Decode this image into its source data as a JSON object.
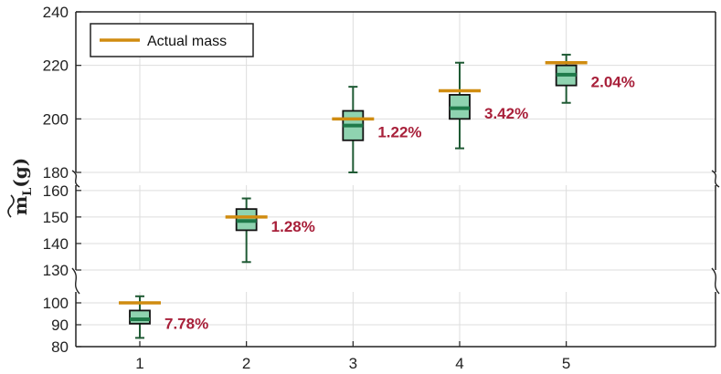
{
  "chart_data": {
    "type": "box",
    "title": "",
    "xlabel": "",
    "ylabel": "m̃L (g)",
    "ylabel_main": "m",
    "ylabel_sub": "L",
    "ylabel_unit": "(g)",
    "categories": [
      "1",
      "2",
      "3",
      "4",
      "5"
    ],
    "xlim": [
      0.4,
      6.4
    ],
    "broken_axis_segments": [
      {
        "ylim": [
          80,
          105
        ],
        "ticks": [
          80,
          90,
          100
        ]
      },
      {
        "ylim": [
          130,
          162
        ],
        "ticks": [
          130,
          140,
          150,
          160
        ]
      },
      {
        "ylim": [
          180,
          240
        ],
        "ticks": [
          180,
          200,
          220,
          240
        ]
      }
    ],
    "boxes": [
      {
        "x": 1,
        "whisker_low": 84,
        "q1": 90.5,
        "median": 92.5,
        "q3": 96.5,
        "whisker_high": 103,
        "actual_mass": 100,
        "error_label": "7.78%"
      },
      {
        "x": 2,
        "whisker_low": 133,
        "q1": 145,
        "median": 148.5,
        "q3": 153,
        "whisker_high": 157,
        "actual_mass": 150,
        "error_label": "1.28%"
      },
      {
        "x": 3,
        "whisker_low": 180,
        "q1": 192,
        "median": 197.5,
        "q3": 203,
        "whisker_high": 212,
        "actual_mass": 200,
        "error_label": "1.22%"
      },
      {
        "x": 4,
        "whisker_low": 189,
        "q1": 200,
        "median": 204,
        "q3": 209,
        "whisker_high": 221,
        "actual_mass": 210.5,
        "error_label": "3.42%"
      },
      {
        "x": 5,
        "whisker_low": 206,
        "q1": 212.5,
        "median": 216.5,
        "q3": 220,
        "whisker_high": 224,
        "actual_mass": 221,
        "error_label": "2.04%"
      }
    ],
    "legend": {
      "label": "Actual mass",
      "location": "top-left"
    },
    "grid": true,
    "colors": {
      "actual_mass": "#d08c10",
      "box_fill": "#8fd3b0",
      "box_median": "#1f7a4a",
      "box_edge": "#111111",
      "whisker": "#1f5a34",
      "error_label": "#a8203a",
      "grid": "#dddddd",
      "axis": "#222222"
    }
  }
}
